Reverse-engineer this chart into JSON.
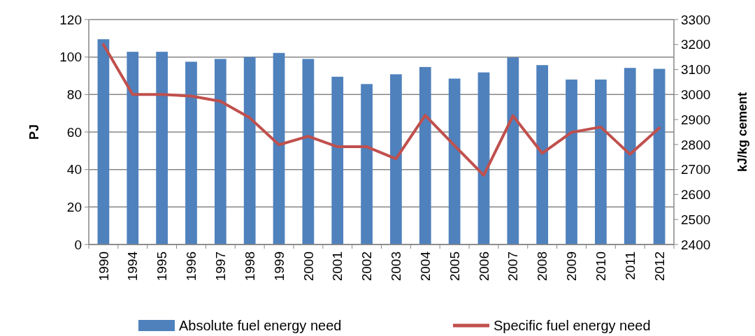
{
  "chart_data": {
    "type": "bar",
    "ylabel": "PJ",
    "y2label": "kJ/kg cement",
    "categories": [
      "1990",
      "1994",
      "1995",
      "1996",
      "1997",
      "1998",
      "1999",
      "2000",
      "2001",
      "2002",
      "2003",
      "2004",
      "2005",
      "2006",
      "2007",
      "2008",
      "2009",
      "2010",
      "2011",
      "2012"
    ],
    "series": [
      {
        "name": "Absolute fuel energy need",
        "color": "#4f81bd",
        "values": [
          109.5,
          102.8,
          102.8,
          97.5,
          99,
          100,
          102.2,
          99,
          89.5,
          85.6,
          90.8,
          94.7,
          88.5,
          91.8,
          99.8,
          95.7,
          88,
          88,
          94.2,
          93.7
        ]
      },
      {
        "name": "Specific fuel energy need",
        "type": "line",
        "axis": "y2",
        "color": "#c0504d",
        "values": [
          3200,
          3000,
          3000,
          2994,
          2973,
          2907,
          2799,
          2833,
          2791,
          2791,
          2743,
          2917,
          2796,
          2677,
          2915,
          2765,
          2849,
          2870,
          2761,
          2866
        ]
      }
    ],
    "ylim": [
      0,
      120
    ],
    "yticks": [
      0,
      20,
      40,
      60,
      80,
      100,
      120
    ],
    "y2lim": [
      2400,
      3300
    ],
    "y2ticks": [
      2400,
      2500,
      2600,
      2700,
      2800,
      2900,
      3000,
      3100,
      3200,
      3300
    ],
    "grid": "y",
    "legend": "bottom",
    "marker": "none",
    "line_style": "solid"
  }
}
